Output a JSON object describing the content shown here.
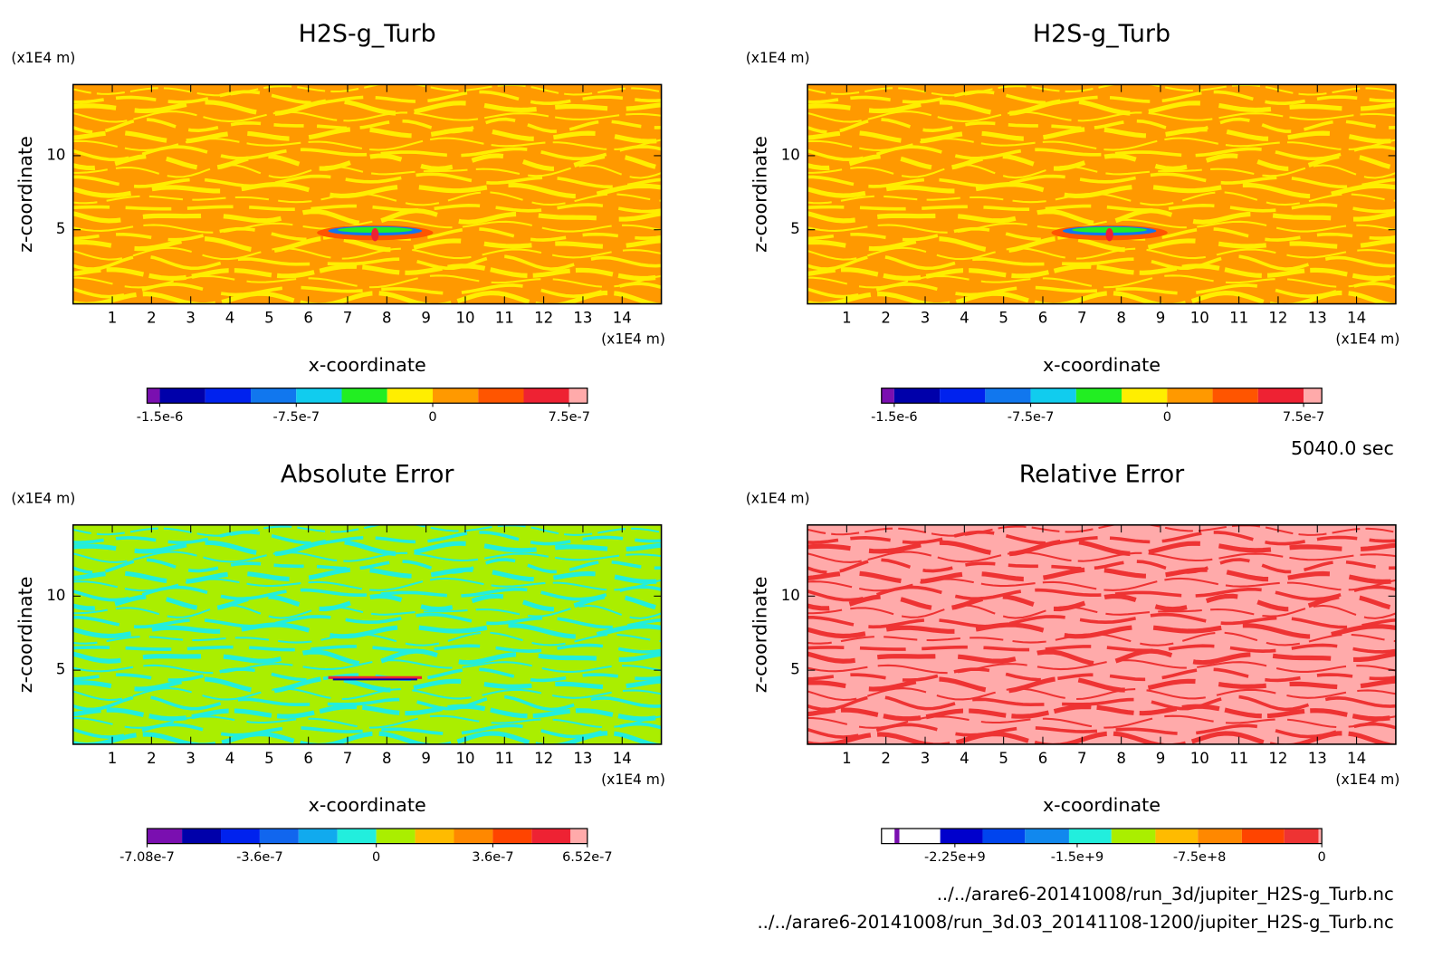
{
  "chart_data": [
    {
      "type": "contour",
      "title": "H2S-g_Turb",
      "xlabel": "x-coordinate",
      "ylabel": "z-coordinate",
      "x_unit": "(x1E4 m)",
      "y_unit": "(x1E4 m)",
      "xlim": [
        0,
        15
      ],
      "ylim": [
        0,
        14.8
      ],
      "xticks": [
        1,
        2,
        3,
        4,
        5,
        6,
        7,
        8,
        9,
        10,
        11,
        12,
        13,
        14
      ],
      "yticks": [
        5,
        10
      ],
      "field_colors": [
        "#ff9900",
        "#ffee00"
      ],
      "colorbar": {
        "clim": [
          -1.57e-06,
          8.5e-07
        ],
        "levels": [
          -1.5e-06,
          -1.25e-06,
          -1e-06,
          -7.5e-07,
          -5e-07,
          -2.5e-07,
          0,
          2.5e-07,
          5e-07,
          7.5e-07
        ],
        "colors": [
          "#7a0fb0",
          "#0000aa",
          "#0022ee",
          "#1177ee",
          "#11ccee",
          "#22ee22",
          "#ffee00",
          "#ff9900",
          "#ff5500",
          "#ee2233",
          "#ffaaaa"
        ],
        "ticks": [
          {
            "value": -1.5e-06,
            "label": "-1.5e-6"
          },
          {
            "value": -7.5e-07,
            "label": "-7.5e-7"
          },
          0,
          {
            "value": 7.5e-07,
            "label": "7.5e-7"
          }
        ]
      }
    },
    {
      "type": "contour",
      "title": "H2S-g_Turb",
      "xlabel": "x-coordinate",
      "ylabel": "z-coordinate",
      "x_unit": "(x1E4 m)",
      "y_unit": "(x1E4 m)",
      "xlim": [
        0,
        15
      ],
      "ylim": [
        0,
        14.8
      ],
      "xticks": [
        1,
        2,
        3,
        4,
        5,
        6,
        7,
        8,
        9,
        10,
        11,
        12,
        13,
        14
      ],
      "yticks": [
        5,
        10
      ],
      "field_colors": [
        "#ff9900",
        "#ffee00"
      ],
      "colorbar": {
        "clim": [
          -1.57e-06,
          8.5e-07
        ],
        "levels": [
          -1.5e-06,
          -1.25e-06,
          -1e-06,
          -7.5e-07,
          -5e-07,
          -2.5e-07,
          0,
          2.5e-07,
          5e-07,
          7.5e-07
        ],
        "colors": [
          "#7a0fb0",
          "#0000aa",
          "#0022ee",
          "#1177ee",
          "#11ccee",
          "#22ee22",
          "#ffee00",
          "#ff9900",
          "#ff5500",
          "#ee2233",
          "#ffaaaa"
        ],
        "ticks": [
          {
            "value": -1.5e-06,
            "label": "-1.5e-6"
          },
          {
            "value": -7.5e-07,
            "label": "-7.5e-7"
          },
          0,
          {
            "value": 7.5e-07,
            "label": "7.5e-7"
          }
        ]
      }
    },
    {
      "type": "contour",
      "title": "Absolute Error",
      "xlabel": "x-coordinate",
      "ylabel": "z-coordinate",
      "x_unit": "(x1E4 m)",
      "y_unit": "(x1E4 m)",
      "xlim": [
        0,
        15
      ],
      "ylim": [
        0,
        14.8
      ],
      "xticks": [
        1,
        2,
        3,
        4,
        5,
        6,
        7,
        8,
        9,
        10,
        11,
        12,
        13,
        14
      ],
      "yticks": [
        5,
        10
      ],
      "field_colors": [
        "#aaee00",
        "#22eedd"
      ],
      "colorbar": {
        "clim": [
          -7.08e-07,
          6.52e-07
        ],
        "levels": [
          -6e-07,
          -4.8e-07,
          -3.6e-07,
          -2.4e-07,
          -1.2e-07,
          0,
          1.2e-07,
          2.4e-07,
          3.6e-07,
          4.8e-07,
          6e-07
        ],
        "colors": [
          "#7a0fb0",
          "#0000aa",
          "#0022ee",
          "#1166ee",
          "#11aaee",
          "#22eedd",
          "#aaee00",
          "#ffbb00",
          "#ff8800",
          "#ff4400",
          "#ee2233",
          "#ffaaaa"
        ],
        "ticks": [
          {
            "value": -7.08e-07,
            "label": "-7.08e-7"
          },
          {
            "value": -3.6e-07,
            "label": "-3.6e-7"
          },
          0,
          {
            "value": 3.6e-07,
            "label": "3.6e-7"
          },
          {
            "value": 6.52e-07,
            "label": "6.52e-7"
          }
        ]
      }
    },
    {
      "type": "contour",
      "title": "Relative Error",
      "xlabel": "x-coordinate",
      "ylabel": "z-coordinate",
      "x_unit": "(x1E4 m)",
      "y_unit": "(x1E4 m)",
      "xlim": [
        0,
        15
      ],
      "ylim": [
        0,
        14.8
      ],
      "xticks": [
        1,
        2,
        3,
        4,
        5,
        6,
        7,
        8,
        9,
        10,
        11,
        12,
        13,
        14
      ],
      "yticks": [
        5,
        10
      ],
      "field_colors": [
        "#ffaaaa",
        "#ee3333"
      ],
      "colorbar": {
        "clim": [
          -2700000000.0,
          0
        ],
        "levels": [
          -2620000000.0,
          -2590000000.0,
          -2340000000.0,
          -2080000000.0,
          -1820000000.0,
          -1550000000.0,
          -1290000000.0,
          -1020000000.0,
          -760000000.0,
          -490000000.0,
          -230000000.0,
          -20000000.0
        ],
        "colors": [
          "#ffffff",
          "#7a0fb0",
          "#ffffff",
          "#0000cc",
          "#0044ee",
          "#1188ee",
          "#22eedd",
          "#aaee00",
          "#ffbb00",
          "#ff8800",
          "#ff4400",
          "#ee3333",
          "#ffaaaa"
        ],
        "ticks": [
          {
            "value": -2250000000.0,
            "label": "-2.25e+9"
          },
          {
            "value": -1500000000.0,
            "label": "-1.5e+9"
          },
          {
            "value": -750000000.0,
            "label": "-7.5e+8"
          },
          0
        ]
      }
    }
  ],
  "annotations": {
    "time": "5040.0 sec",
    "files": [
      "../../arare6-20141008/run_3d/jupiter_H2S-g_Turb.nc",
      "../../arare6-20141008/run_3d.03_20141108-1200/jupiter_H2S-g_Turb.nc"
    ]
  }
}
